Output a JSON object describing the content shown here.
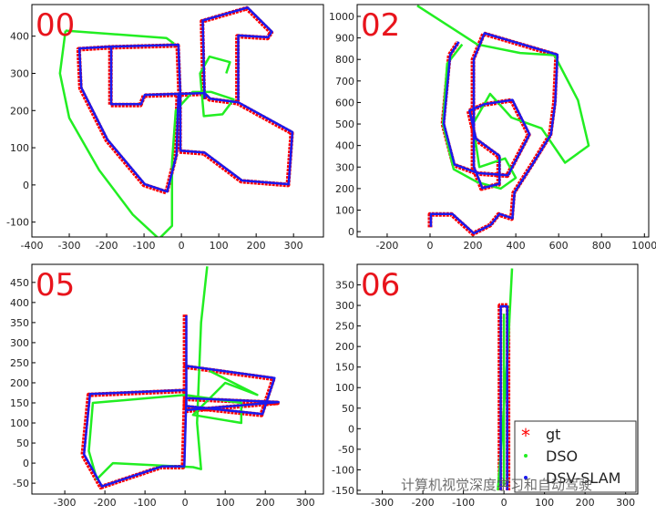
{
  "chart_data": [
    {
      "type": "line",
      "label": "00",
      "xlim": [
        -400,
        380
      ],
      "ylim": [
        -140,
        485
      ],
      "xticks": [
        -400,
        -300,
        -200,
        -100,
        0,
        100,
        200,
        300
      ],
      "yticks": [
        -100,
        0,
        100,
        200,
        300,
        400
      ],
      "series": [
        {
          "name": "gt",
          "color": "#ff0000",
          "x": [
            -5,
            60,
            160,
            285,
            295,
            150,
            75,
            60,
            -100,
            -110,
            -190,
            -190,
            -10,
            -5,
            -5,
            null,
            -190,
            -275,
            -270,
            -200,
            -100,
            -40,
            -15,
            -10,
            null,
            60,
            55,
            175,
            240,
            230,
            150,
            150
          ],
          "values": [
            90,
            85,
            10,
            0,
            140,
            220,
            230,
            245,
            240,
            215,
            215,
            370,
            375,
            240,
            90,
            null,
            370,
            365,
            260,
            120,
            0,
            -20,
            80,
            240,
            null,
            230,
            440,
            475,
            410,
            395,
            400,
            225
          ]
        },
        {
          "name": "DSO",
          "color": "#22ee22",
          "x": [
            -310,
            -40,
            -20,
            null,
            -310,
            -325,
            -300,
            -220,
            -130,
            -60,
            -25,
            -25,
            -15,
            30,
            80,
            140,
            110,
            60,
            50,
            75,
            130,
            120
          ],
          "values": [
            415,
            395,
            380,
            null,
            415,
            300,
            180,
            40,
            -80,
            -145,
            -110,
            60,
            200,
            250,
            250,
            230,
            190,
            185,
            300,
            345,
            330,
            300
          ]
        },
        {
          "name": "DSV-SLAM",
          "color": "#1a1aee",
          "x": [
            -3,
            62,
            162,
            287,
            297,
            152,
            77,
            62,
            -98,
            -108,
            -188,
            -188,
            -8,
            -3,
            -3,
            null,
            -188,
            -273,
            -268,
            -198,
            -98,
            -38,
            -13,
            -8,
            null,
            62,
            57,
            177,
            242,
            232,
            152,
            152
          ],
          "values": [
            92,
            87,
            12,
            2,
            142,
            222,
            232,
            247,
            242,
            217,
            217,
            372,
            377,
            242,
            92,
            null,
            372,
            367,
            262,
            122,
            2,
            -18,
            82,
            242,
            null,
            232,
            442,
            477,
            412,
            397,
            402,
            227
          ]
        }
      ]
    },
    {
      "type": "line",
      "label": "02",
      "xlim": [
        -340,
        1020
      ],
      "ylim": [
        -25,
        1055
      ],
      "xticks": [
        -200,
        0,
        200,
        400,
        600,
        800,
        1000
      ],
      "yticks": [
        0,
        100,
        200,
        300,
        400,
        500,
        600,
        700,
        800,
        900,
        1000
      ],
      "series": [
        {
          "name": "gt",
          "color": "#ff0000",
          "x": [
            0,
            0,
            100,
            200,
            280,
            320,
            380,
            390,
            480,
            560,
            580,
            590,
            250,
            200,
            200,
            240,
            320,
            320,
            210,
            180,
            250,
            380,
            460,
            360,
            220,
            110,
            60,
            90,
            130
          ],
          "values": [
            20,
            80,
            80,
            -10,
            30,
            80,
            60,
            180,
            320,
            450,
            600,
            820,
            920,
            800,
            300,
            200,
            220,
            350,
            430,
            560,
            590,
            610,
            450,
            260,
            270,
            310,
            500,
            820,
            880
          ]
        },
        {
          "name": "DSO",
          "color": "#22ee22",
          "x": [
            -60,
            220,
            420,
            580,
            690,
            740,
            630,
            520,
            380,
            280,
            200,
            230,
            350,
            400,
            330,
            220,
            110,
            60,
            80,
            150
          ],
          "values": [
            1050,
            870,
            830,
            820,
            610,
            400,
            320,
            480,
            530,
            640,
            500,
            300,
            340,
            250,
            200,
            230,
            290,
            500,
            780,
            870
          ]
        },
        {
          "name": "DSV-SLAM",
          "color": "#1a1aee",
          "x": [
            4,
            4,
            104,
            204,
            284,
            324,
            384,
            394,
            484,
            564,
            584,
            594,
            254,
            204,
            204,
            244,
            324,
            324,
            214,
            184,
            254,
            384,
            464,
            364,
            224,
            114,
            64,
            94,
            134
          ],
          "values": [
            22,
            82,
            82,
            -8,
            32,
            82,
            62,
            182,
            322,
            452,
            602,
            822,
            922,
            802,
            302,
            202,
            222,
            352,
            432,
            562,
            592,
            612,
            452,
            262,
            272,
            312,
            502,
            822,
            882
          ]
        }
      ]
    },
    {
      "type": "line",
      "label": "05",
      "xlim": [
        -382,
        345
      ],
      "ylim": [
        -77,
        495
      ],
      "xticks": [
        -300,
        -200,
        -100,
        0,
        100,
        200,
        300
      ],
      "yticks": [
        -50,
        0,
        50,
        100,
        150,
        200,
        250,
        300,
        350,
        400,
        450
      ],
      "series": [
        {
          "name": "gt",
          "color": "#ff0000",
          "x": [
            0,
            0,
            190,
            220,
            0,
            0,
            -240,
            -255,
            -210,
            -60,
            -5,
            0,
            230,
            0
          ],
          "values": [
            370,
            140,
            120,
            210,
            240,
            180,
            170,
            20,
            -60,
            -10,
            -10,
            160,
            150,
            130
          ]
        },
        {
          "name": "DSO",
          "color": "#22ee22",
          "x": [
            55,
            40,
            30,
            40,
            20,
            -180,
            -220,
            -240,
            -230,
            0,
            140,
            140,
            20,
            100,
            180,
            60
          ],
          "values": [
            490,
            350,
            100,
            -15,
            -10,
            0,
            -40,
            30,
            150,
            170,
            150,
            100,
            120,
            200,
            170,
            230
          ]
        },
        {
          "name": "DSV-SLAM",
          "color": "#1a1aee",
          "x": [
            3,
            3,
            193,
            223,
            3,
            3,
            -237,
            -252,
            -207,
            -57,
            -2,
            3,
            233,
            3
          ],
          "values": [
            368,
            142,
            122,
            212,
            242,
            182,
            172,
            22,
            -58,
            -8,
            -8,
            162,
            152,
            132
          ]
        }
      ]
    },
    {
      "type": "line",
      "label": "06",
      "xlim": [
        -362,
        330
      ],
      "ylim": [
        -159,
        400
      ],
      "xticks": [
        -300,
        -200,
        -100,
        0,
        100,
        200,
        300
      ],
      "yticks": [
        -150,
        -100,
        -50,
        0,
        50,
        100,
        150,
        200,
        250,
        300,
        350
      ],
      "legend": "lower right",
      "series": [
        {
          "name": "gt",
          "color": "#ff0000",
          "x": [
            -10,
            -10,
            10,
            10
          ],
          "values": [
            -150,
            300,
            300,
            -150
          ]
        },
        {
          "name": "DSO",
          "color": "#22ee22",
          "x": [
            20,
            10,
            -5,
            -15,
            null,
            0,
            0
          ],
          "values": [
            390,
            200,
            -20,
            -150,
            null,
            280,
            -140
          ]
        },
        {
          "name": "DSV-SLAM",
          "color": "#1a1aee",
          "x": [
            -8,
            -8,
            8,
            8
          ],
          "values": [
            -150,
            298,
            298,
            -150
          ]
        }
      ]
    }
  ],
  "watermark": "计算机视觉深度学习和自动驾驶"
}
